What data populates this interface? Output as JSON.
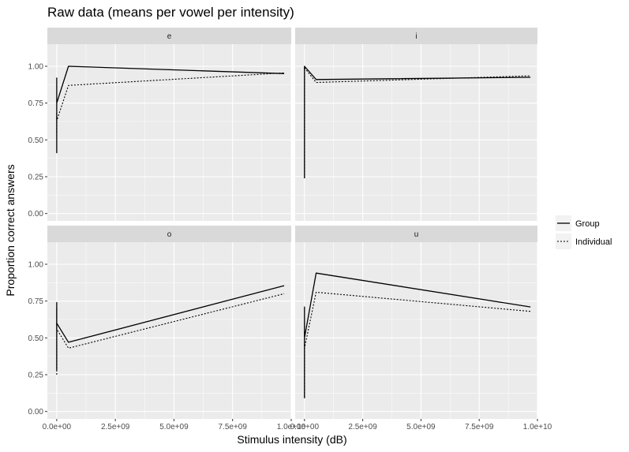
{
  "chart_data": {
    "type": "line",
    "title": "Raw data (means per vowel per intensity)",
    "xlabel": "Stimulus intensity (dB)",
    "ylabel": "Proportion correct answers",
    "xlim": [
      -400000000,
      10000000000
    ],
    "ylim": [
      -0.05,
      1.15
    ],
    "x_ticks": [
      0,
      2500000000,
      5000000000,
      7500000000,
      10000000000
    ],
    "x_tick_labels": [
      "0.0e+00",
      "2.5e+09",
      "5.0e+09",
      "7.5e+09",
      "1.0e+10"
    ],
    "y_ticks": [
      0,
      0.25,
      0.5,
      0.75,
      1
    ],
    "y_tick_labels": [
      "0.00",
      "0.25",
      "0.50",
      "0.75",
      "1.00"
    ],
    "grid": true,
    "legend": {
      "position": "right",
      "entries": [
        {
          "name": "Group",
          "linetype": "solid"
        },
        {
          "name": "Individual",
          "linetype": "dotted"
        }
      ]
    },
    "panels": [
      {
        "facet": "e",
        "series": [
          {
            "name": "Group",
            "points": [
              [
                0,
                0.41
              ],
              [
                0,
                0.92
              ],
              [
                0,
                0.75
              ],
              [
                500000000,
                1.0
              ],
              [
                9700000000,
                0.95
              ]
            ]
          },
          {
            "name": "Individual",
            "points": [
              [
                0,
                0.55
              ],
              [
                0,
                0.68
              ],
              [
                0,
                0.63
              ],
              [
                500000000,
                0.87
              ],
              [
                9700000000,
                0.955
              ]
            ]
          }
        ]
      },
      {
        "facet": "i",
        "series": [
          {
            "name": "Group",
            "points": [
              [
                0,
                0.24
              ],
              [
                0,
                0.92
              ],
              [
                0,
                1.0
              ],
              [
                500000000,
                0.91
              ],
              [
                9700000000,
                0.925
              ]
            ]
          },
          {
            "name": "Individual",
            "points": [
              [
                0,
                0.24
              ],
              [
                0,
                0.95
              ],
              [
                0,
                0.99
              ],
              [
                500000000,
                0.89
              ],
              [
                9700000000,
                0.935
              ]
            ]
          }
        ]
      },
      {
        "facet": "o",
        "series": [
          {
            "name": "Group",
            "points": [
              [
                0,
                0.28
              ],
              [
                0,
                0.74
              ],
              [
                0,
                0.6
              ],
              [
                500000000,
                0.47
              ],
              [
                9700000000,
                0.855
              ]
            ]
          },
          {
            "name": "Individual",
            "points": [
              [
                0,
                0.25
              ],
              [
                0,
                0.7
              ],
              [
                0,
                0.56
              ],
              [
                500000000,
                0.43
              ],
              [
                9700000000,
                0.8
              ]
            ]
          }
        ]
      },
      {
        "facet": "u",
        "series": [
          {
            "name": "Group",
            "points": [
              [
                0,
                0.09
              ],
              [
                0,
                0.71
              ],
              [
                0,
                0.5
              ],
              [
                500000000,
                0.94
              ],
              [
                9700000000,
                0.71
              ]
            ]
          },
          {
            "name": "Individual",
            "points": [
              [
                0,
                0.1
              ],
              [
                0,
                0.6
              ],
              [
                0,
                0.43
              ],
              [
                500000000,
                0.81
              ],
              [
                9700000000,
                0.68
              ]
            ]
          }
        ]
      }
    ]
  }
}
